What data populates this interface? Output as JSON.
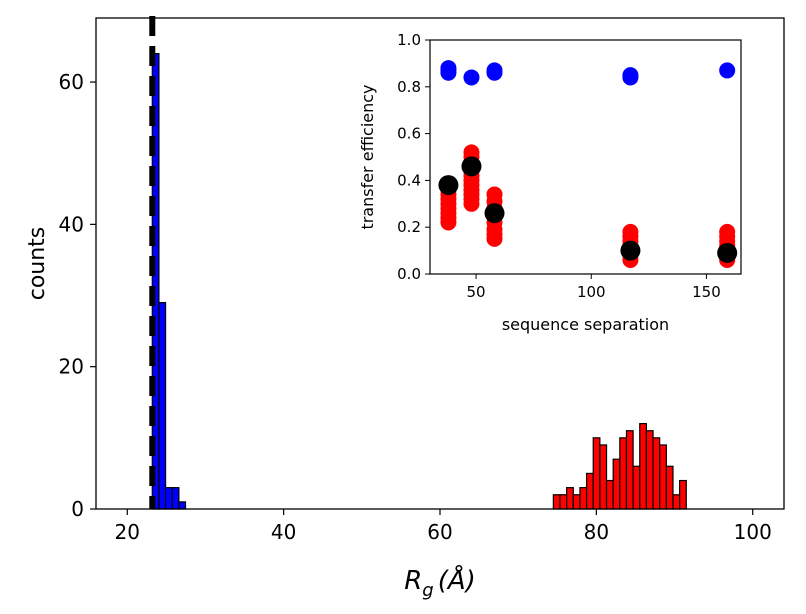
{
  "chart_data": [
    {
      "type": "bar",
      "subtype": "histogram",
      "xlabel": "R_g (Å)",
      "xlabel_main": "R",
      "xlabel_sub": "g",
      "xlabel_unit": "(Å)",
      "ylabel": "counts",
      "xlim": [
        16,
        104
      ],
      "ylim": [
        0,
        69
      ],
      "xticks": [
        20,
        40,
        60,
        80,
        100
      ],
      "yticks": [
        0,
        20,
        40,
        60
      ],
      "vline": {
        "x": 23.2,
        "style": "dashed",
        "color": "#000000"
      },
      "series": [
        {
          "name": "blue",
          "color": "#0000ff",
          "bin_width": 0.85,
          "bins": [
            {
              "x0": 23.2,
              "count": 64
            },
            {
              "x0": 24.05,
              "count": 29
            },
            {
              "x0": 24.9,
              "count": 3
            },
            {
              "x0": 25.75,
              "count": 3
            },
            {
              "x0": 26.6,
              "count": 1
            }
          ]
        },
        {
          "name": "red",
          "color": "#ff0000",
          "bin_width": 0.85,
          "bins": [
            {
              "x0": 74.5,
              "count": 2
            },
            {
              "x0": 75.35,
              "count": 2
            },
            {
              "x0": 76.2,
              "count": 3
            },
            {
              "x0": 77.05,
              "count": 2
            },
            {
              "x0": 77.9,
              "count": 3
            },
            {
              "x0": 78.75,
              "count": 5
            },
            {
              "x0": 79.6,
              "count": 10
            },
            {
              "x0": 80.45,
              "count": 9
            },
            {
              "x0": 81.3,
              "count": 4
            },
            {
              "x0": 82.15,
              "count": 7
            },
            {
              "x0": 83.0,
              "count": 10
            },
            {
              "x0": 83.85,
              "count": 11
            },
            {
              "x0": 84.7,
              "count": 6
            },
            {
              "x0": 85.55,
              "count": 12
            },
            {
              "x0": 86.4,
              "count": 11
            },
            {
              "x0": 87.25,
              "count": 10
            },
            {
              "x0": 88.1,
              "count": 9
            },
            {
              "x0": 88.95,
              "count": 6
            },
            {
              "x0": 89.8,
              "count": 2
            },
            {
              "x0": 90.65,
              "count": 4
            }
          ]
        }
      ]
    },
    {
      "type": "scatter",
      "position": "inset top-right",
      "xlabel": "sequence separation",
      "ylabel": "transfer efficiency",
      "xlim": [
        30,
        165
      ],
      "ylim": [
        0.0,
        1.0
      ],
      "xticks": [
        50,
        100,
        150
      ],
      "yticks": [
        0.0,
        0.2,
        0.4,
        0.6,
        0.8,
        1.0
      ],
      "ytick_labels": [
        "0.0",
        "0.2",
        "0.4",
        "0.6",
        "0.8",
        "1.0"
      ],
      "series": [
        {
          "name": "blue",
          "color": "#0000ff",
          "points": [
            {
              "x": 38,
              "y": 0.86
            },
            {
              "x": 38,
              "y": 0.87
            },
            {
              "x": 38,
              "y": 0.88
            },
            {
              "x": 48,
              "y": 0.84
            },
            {
              "x": 58,
              "y": 0.86
            },
            {
              "x": 58,
              "y": 0.87
            },
            {
              "x": 117,
              "y": 0.84
            },
            {
              "x": 117,
              "y": 0.85
            },
            {
              "x": 159,
              "y": 0.87
            }
          ]
        },
        {
          "name": "red",
          "color": "#ff0000",
          "points": [
            {
              "x": 38,
              "y": 0.22
            },
            {
              "x": 38,
              "y": 0.24
            },
            {
              "x": 38,
              "y": 0.26
            },
            {
              "x": 38,
              "y": 0.28
            },
            {
              "x": 38,
              "y": 0.3
            },
            {
              "x": 38,
              "y": 0.32
            },
            {
              "x": 38,
              "y": 0.34
            },
            {
              "x": 38,
              "y": 0.36
            },
            {
              "x": 48,
              "y": 0.3
            },
            {
              "x": 48,
              "y": 0.32
            },
            {
              "x": 48,
              "y": 0.34
            },
            {
              "x": 48,
              "y": 0.36
            },
            {
              "x": 48,
              "y": 0.38
            },
            {
              "x": 48,
              "y": 0.4
            },
            {
              "x": 48,
              "y": 0.42
            },
            {
              "x": 48,
              "y": 0.44
            },
            {
              "x": 48,
              "y": 0.47
            },
            {
              "x": 48,
              "y": 0.5
            },
            {
              "x": 48,
              "y": 0.52
            },
            {
              "x": 58,
              "y": 0.15
            },
            {
              "x": 58,
              "y": 0.17
            },
            {
              "x": 58,
              "y": 0.19
            },
            {
              "x": 58,
              "y": 0.22
            },
            {
              "x": 58,
              "y": 0.25
            },
            {
              "x": 58,
              "y": 0.28
            },
            {
              "x": 58,
              "y": 0.31
            },
            {
              "x": 58,
              "y": 0.34
            },
            {
              "x": 117,
              "y": 0.06
            },
            {
              "x": 117,
              "y": 0.08
            },
            {
              "x": 117,
              "y": 0.1
            },
            {
              "x": 117,
              "y": 0.12
            },
            {
              "x": 117,
              "y": 0.14
            },
            {
              "x": 117,
              "y": 0.16
            },
            {
              "x": 117,
              "y": 0.18
            },
            {
              "x": 159,
              "y": 0.06
            },
            {
              "x": 159,
              "y": 0.08
            },
            {
              "x": 159,
              "y": 0.1
            },
            {
              "x": 159,
              "y": 0.12
            },
            {
              "x": 159,
              "y": 0.14
            },
            {
              "x": 159,
              "y": 0.16
            },
            {
              "x": 159,
              "y": 0.18
            }
          ]
        },
        {
          "name": "black",
          "color": "#000000",
          "points": [
            {
              "x": 38,
              "y": 0.38
            },
            {
              "x": 48,
              "y": 0.46
            },
            {
              "x": 58,
              "y": 0.26
            },
            {
              "x": 117,
              "y": 0.1
            },
            {
              "x": 159,
              "y": 0.09
            }
          ]
        }
      ]
    }
  ]
}
